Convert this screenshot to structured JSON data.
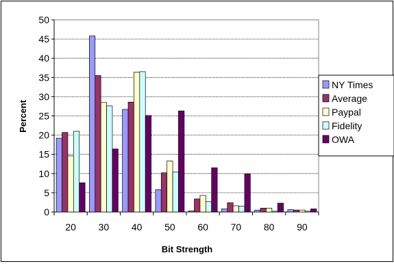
{
  "chart_data": {
    "type": "bar",
    "title": "",
    "xlabel": "Bit Strength",
    "ylabel": "Percent",
    "categories": [
      "20",
      "30",
      "40",
      "50",
      "60",
      "70",
      "80",
      "90"
    ],
    "ylim": [
      0,
      50
    ],
    "yticks": [
      "0",
      "5",
      "10",
      "15",
      "20",
      "25",
      "30",
      "35",
      "40",
      "45",
      "50"
    ],
    "grid": true,
    "legend_position": "right",
    "series": [
      {
        "name": "NY Times",
        "color": "#9999FF",
        "values": [
          19.2,
          45.8,
          26.7,
          5.8,
          0.3,
          0.8,
          0.5,
          0.6
        ]
      },
      {
        "name": "Average",
        "color": "#993366",
        "values": [
          20.7,
          35.5,
          28.6,
          10.2,
          3.4,
          2.4,
          1.0,
          0.5
        ]
      },
      {
        "name": "Paypal",
        "color": "#FFFFCC",
        "values": [
          14.6,
          28.5,
          36.4,
          13.3,
          4.3,
          1.6,
          1.0,
          0.5
        ]
      },
      {
        "name": "Fidelity",
        "color": "#CCFFFF",
        "values": [
          21.0,
          27.6,
          36.5,
          10.4,
          2.7,
          1.5,
          0.2,
          0.2
        ]
      },
      {
        "name": "OWA",
        "color": "#660066",
        "values": [
          7.6,
          16.4,
          25.1,
          26.3,
          11.5,
          9.9,
          2.3,
          0.8
        ]
      }
    ]
  }
}
